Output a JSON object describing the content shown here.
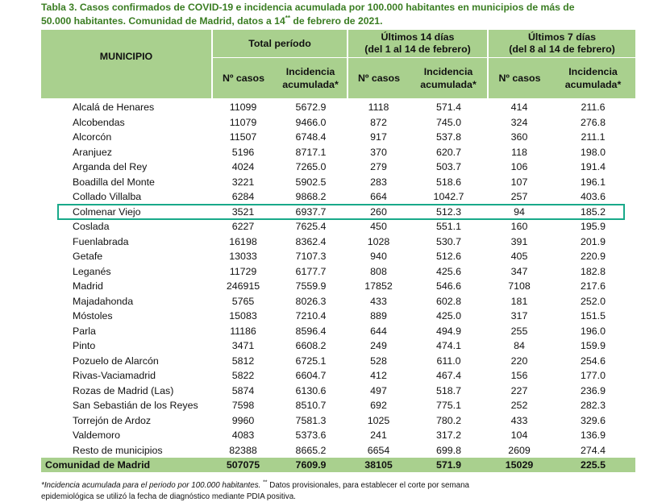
{
  "caption": {
    "line1": "Tabla 3. Casos confirmados de COVID-19 e incidencia acumulada por 100.000 habitantes en municipios de más de",
    "line2_before": "50.000 habitantes. Comunidad de Madrid, datos a 14",
    "line2_sup": "**",
    "line2_after": " de febrero de 2021."
  },
  "header": {
    "municipio": "MUNICIPIO",
    "total": "Total período",
    "ultimos14_l1": "Últimos 14 días",
    "ultimos14_l2": "(del 1 al 14 de febrero)",
    "ultimos7_l1": "Últimos 7 días",
    "ultimos7_l2": "(del 8 al 14 de febrero)",
    "n_casos": "Nº casos",
    "incidencia_l1": "Incidencia",
    "incidencia_l2": "acumulada*"
  },
  "rows": [
    {
      "name": "Alcalá de Henares",
      "c_total": "11099",
      "i_total": "5672.9",
      "c_14": "1118",
      "i_14": "571.4",
      "c_7": "414",
      "i_7": "211.6"
    },
    {
      "name": "Alcobendas",
      "c_total": "11079",
      "i_total": "9466.0",
      "c_14": "872",
      "i_14": "745.0",
      "c_7": "324",
      "i_7": "276.8"
    },
    {
      "name": "Alcorcón",
      "c_total": "11507",
      "i_total": "6748.4",
      "c_14": "917",
      "i_14": "537.8",
      "c_7": "360",
      "i_7": "211.1"
    },
    {
      "name": "Aranjuez",
      "c_total": "5196",
      "i_total": "8717.1",
      "c_14": "370",
      "i_14": "620.7",
      "c_7": "118",
      "i_7": "198.0"
    },
    {
      "name": "Arganda del Rey",
      "c_total": "4024",
      "i_total": "7265.0",
      "c_14": "279",
      "i_14": "503.7",
      "c_7": "106",
      "i_7": "191.4"
    },
    {
      "name": "Boadilla del Monte",
      "c_total": "3221",
      "i_total": "5902.5",
      "c_14": "283",
      "i_14": "518.6",
      "c_7": "107",
      "i_7": "196.1"
    },
    {
      "name": "Collado Villalba",
      "c_total": "6284",
      "i_total": "9868.2",
      "c_14": "664",
      "i_14": "1042.7",
      "c_7": "257",
      "i_7": "403.6"
    },
    {
      "name": "Colmenar Viejo",
      "c_total": "3521",
      "i_total": "6937.7",
      "c_14": "260",
      "i_14": "512.3",
      "c_7": "94",
      "i_7": "185.2"
    },
    {
      "name": "Coslada",
      "c_total": "6227",
      "i_total": "7625.4",
      "c_14": "450",
      "i_14": "551.1",
      "c_7": "160",
      "i_7": "195.9"
    },
    {
      "name": "Fuenlabrada",
      "c_total": "16198",
      "i_total": "8362.4",
      "c_14": "1028",
      "i_14": "530.7",
      "c_7": "391",
      "i_7": "201.9"
    },
    {
      "name": "Getafe",
      "c_total": "13033",
      "i_total": "7107.3",
      "c_14": "940",
      "i_14": "512.6",
      "c_7": "405",
      "i_7": "220.9"
    },
    {
      "name": "Leganés",
      "c_total": "11729",
      "i_total": "6177.7",
      "c_14": "808",
      "i_14": "425.6",
      "c_7": "347",
      "i_7": "182.8"
    },
    {
      "name": "Madrid",
      "c_total": "246915",
      "i_total": "7559.9",
      "c_14": "17852",
      "i_14": "546.6",
      "c_7": "7108",
      "i_7": "217.6"
    },
    {
      "name": "Majadahonda",
      "c_total": "5765",
      "i_total": "8026.3",
      "c_14": "433",
      "i_14": "602.8",
      "c_7": "181",
      "i_7": "252.0"
    },
    {
      "name": "Móstoles",
      "c_total": "15083",
      "i_total": "7210.4",
      "c_14": "889",
      "i_14": "425.0",
      "c_7": "317",
      "i_7": "151.5"
    },
    {
      "name": "Parla",
      "c_total": "11186",
      "i_total": "8596.4",
      "c_14": "644",
      "i_14": "494.9",
      "c_7": "255",
      "i_7": "196.0"
    },
    {
      "name": "Pinto",
      "c_total": "3471",
      "i_total": "6608.2",
      "c_14": "249",
      "i_14": "474.1",
      "c_7": "84",
      "i_7": "159.9"
    },
    {
      "name": "Pozuelo de Alarcón",
      "c_total": "5812",
      "i_total": "6725.1",
      "c_14": "528",
      "i_14": "611.0",
      "c_7": "220",
      "i_7": "254.6"
    },
    {
      "name": "Rivas-Vaciamadrid",
      "c_total": "5822",
      "i_total": "6604.7",
      "c_14": "412",
      "i_14": "467.4",
      "c_7": "156",
      "i_7": "177.0"
    },
    {
      "name": "Rozas de Madrid (Las)",
      "c_total": "5874",
      "i_total": "6130.6",
      "c_14": "497",
      "i_14": "518.7",
      "c_7": "227",
      "i_7": "236.9"
    },
    {
      "name": "San Sebastián de los Reyes",
      "c_total": "7598",
      "i_total": "8510.7",
      "c_14": "692",
      "i_14": "775.1",
      "c_7": "252",
      "i_7": "282.3"
    },
    {
      "name": "Torrejón de Ardoz",
      "c_total": "9960",
      "i_total": "7581.3",
      "c_14": "1025",
      "i_14": "780.2",
      "c_7": "433",
      "i_7": "329.6"
    },
    {
      "name": "Valdemoro",
      "c_total": "4083",
      "i_total": "5373.6",
      "c_14": "241",
      "i_14": "317.2",
      "c_7": "104",
      "i_7": "136.9"
    },
    {
      "name": "Resto de municipios",
      "c_total": "82388",
      "i_total": "8665.2",
      "c_14": "6654",
      "i_14": "699.8",
      "c_7": "2609",
      "i_7": "274.4"
    }
  ],
  "total_row": {
    "name": "Comunidad de Madrid",
    "c_total": "507075",
    "i_total": "7609.9",
    "c_14": "38105",
    "i_14": "571.9",
    "c_7": "15029",
    "i_7": "225.5"
  },
  "highlighted_row": "Colmenar Viejo",
  "colors": {
    "header_bg": "#a9d08e",
    "caption": "#3a7d22",
    "highlight_border": "#19a98a"
  },
  "footnote": {
    "italic": "*Incidencia acumulada para el periodo por 100.000 habitantes.",
    "sup": "**",
    "line1_rest": " Datos provisionales, para establecer el corte por semana",
    "line2": "epidemiológica se utilizó la fecha de diagnóstico mediante PDIA positiva."
  }
}
